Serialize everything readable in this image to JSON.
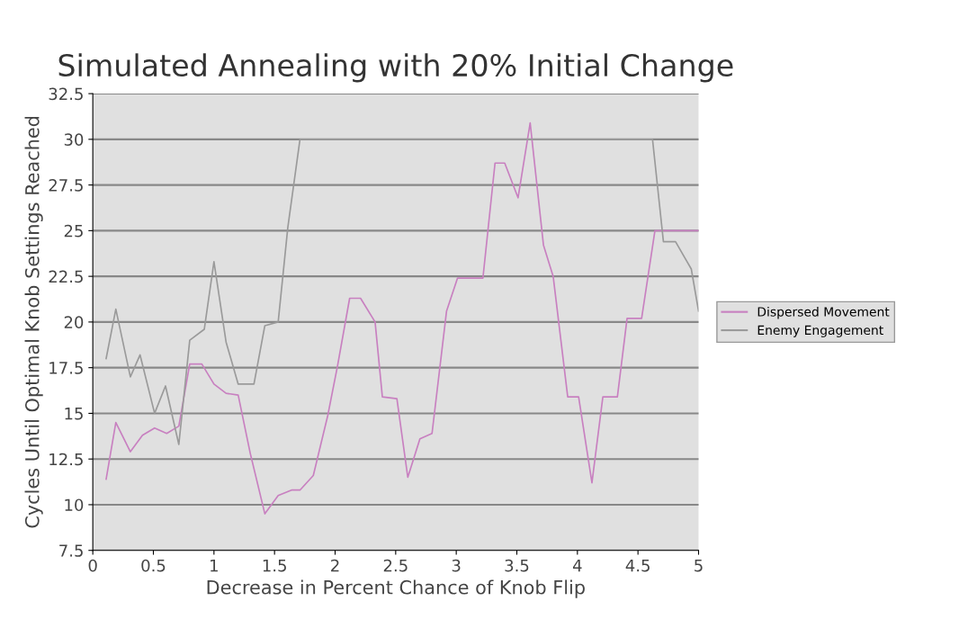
{
  "chart_data": {
    "type": "line",
    "title": "Simulated Annealing with 20% Initial Change",
    "xlabel": "Decrease in Percent Chance of Knob Flip",
    "ylabel": "Cycles Until Optimal Knob Settings Reached",
    "xlim": [
      0,
      5
    ],
    "xticks": [
      0,
      0.5,
      1,
      1.5,
      2,
      2.5,
      3,
      3.5,
      4,
      4.5,
      5
    ],
    "ylim": [
      7.5,
      32.5
    ],
    "yticks": [
      7.5,
      10,
      12.5,
      15,
      17.5,
      20,
      22.5,
      25,
      27.5,
      30,
      32.5
    ],
    "grid": "y",
    "legend": "right",
    "marker": "none",
    "line_style": "solid",
    "series": [
      {
        "name": "Dispersed Movement",
        "color": "#c880c0",
        "x": [
          0.11,
          0.19,
          0.31,
          0.41,
          0.51,
          0.61,
          0.71,
          0.8,
          0.9,
          1.0,
          1.1,
          1.2,
          1.3,
          1.42,
          1.53,
          1.64,
          1.71,
          1.82,
          1.94,
          2.02,
          2.12,
          2.21,
          2.33,
          2.39,
          2.51,
          2.6,
          2.7,
          2.8,
          2.92,
          3.01,
          3.22,
          3.32,
          3.4,
          3.51,
          3.61,
          3.72,
          3.8,
          3.92,
          4.01,
          4.12,
          4.21,
          4.33,
          4.41,
          4.53,
          4.64,
          5.0
        ],
        "values": [
          11.4,
          14.5,
          12.9,
          13.8,
          14.2,
          13.9,
          14.3,
          17.7,
          17.7,
          16.6,
          16.1,
          16.0,
          12.8,
          9.5,
          10.5,
          10.8,
          10.8,
          11.6,
          14.9,
          17.6,
          21.3,
          21.3,
          20.0,
          15.9,
          15.8,
          11.5,
          13.6,
          13.9,
          20.6,
          22.4,
          22.4,
          28.7,
          28.7,
          26.8,
          30.9,
          24.2,
          22.5,
          15.9,
          15.9,
          11.2,
          15.9,
          15.9,
          20.2,
          20.2,
          25.0,
          25.0
        ]
      },
      {
        "name": "Enemy Engagement",
        "color": "#9a9a9a",
        "x": [
          0.11,
          0.19,
          0.31,
          0.39,
          0.51,
          0.6,
          0.71,
          0.8,
          0.92,
          1.0,
          1.1,
          1.2,
          1.33,
          1.42,
          1.53,
          1.61,
          1.71,
          4.62,
          4.71,
          4.81,
          4.94,
          5.0
        ],
        "values": [
          18.0,
          20.7,
          17.0,
          18.2,
          15.0,
          16.5,
          13.3,
          19.0,
          19.6,
          23.3,
          18.9,
          16.6,
          16.6,
          19.8,
          20.0,
          25.2,
          30.0,
          30.0,
          24.4,
          24.4,
          22.9,
          20.6
        ]
      }
    ]
  }
}
